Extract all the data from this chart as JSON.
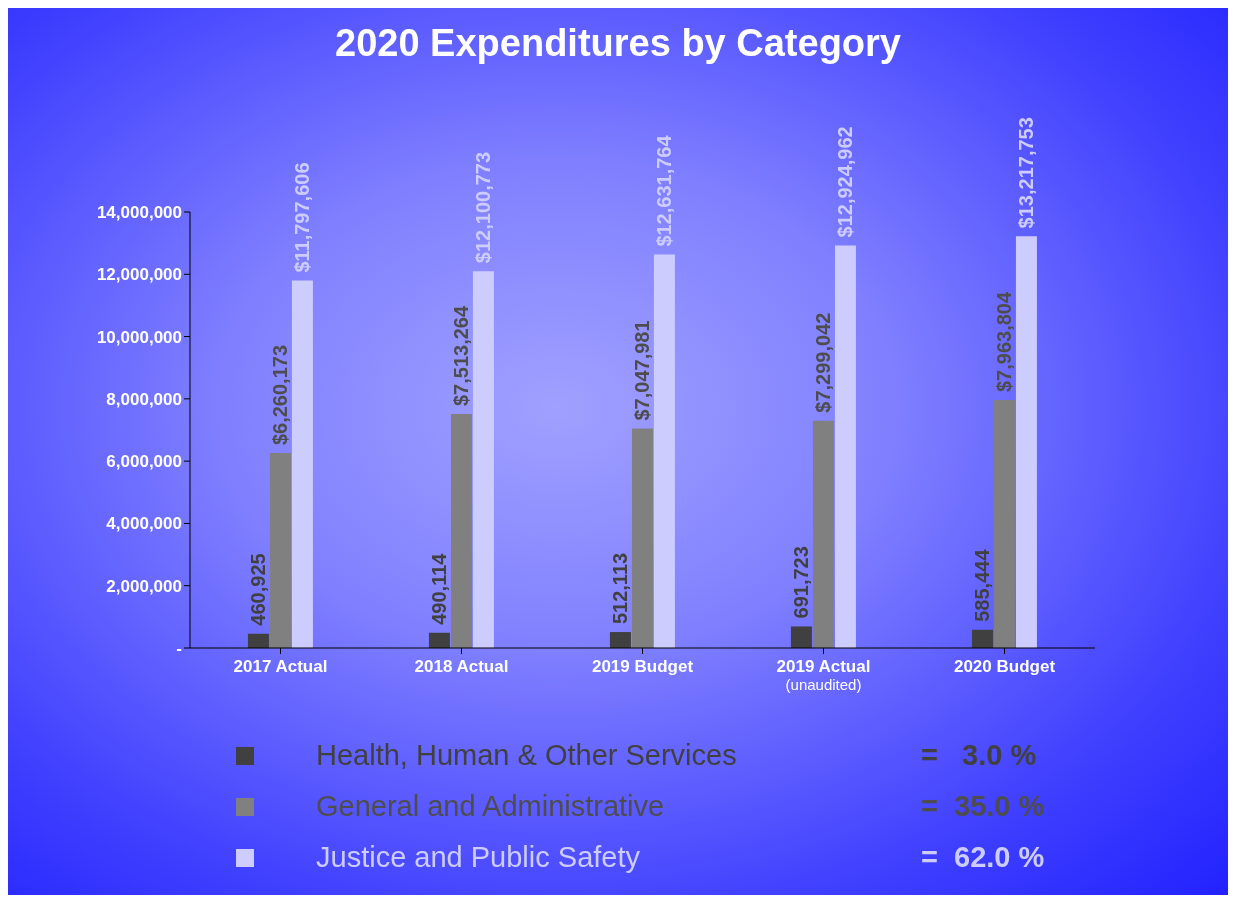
{
  "chart_data": {
    "type": "bar",
    "title": "2020 Expenditures by Category",
    "categories": [
      "2017 Actual",
      "2018 Actual",
      "2019 Budget",
      "2019 Actual\n(unaudited)",
      "2020 Budget"
    ],
    "series": [
      {
        "name": "Health, Human & Other Services",
        "color": "#404040",
        "values": [
          460925,
          490114,
          512113,
          691723,
          585444
        ],
        "value_labels": [
          "460,925",
          "490,114",
          "512,113",
          "691,723",
          "585,444"
        ]
      },
      {
        "name": "General and Administrative",
        "color": "#808080",
        "values": [
          6260173,
          7513264,
          7047981,
          7299042,
          7963804
        ],
        "value_labels": [
          "$6,260,173",
          "$7,513,264",
          "$7,047,981",
          "$7,299,042",
          "$7,963,804"
        ]
      },
      {
        "name": "Justice and Public Safety",
        "color": "#ccccff",
        "values": [
          11797606,
          12100773,
          12631764,
          12924962,
          13217753
        ],
        "value_labels": [
          "$11,797,606",
          "$12,100,773",
          "$12,631,764",
          "$12,924,962",
          "$13,217,753"
        ]
      }
    ],
    "ylim": [
      0,
      14000000
    ],
    "yticks": [
      {
        "value": 0,
        "label": "-"
      },
      {
        "value": 2000000,
        "label": "2,000,000"
      },
      {
        "value": 4000000,
        "label": "4,000,000"
      },
      {
        "value": 6000000,
        "label": "6,000,000"
      },
      {
        "value": 8000000,
        "label": "8,000,000"
      },
      {
        "value": 10000000,
        "label": "10,000,000"
      },
      {
        "value": 12000000,
        "label": "12,000,000"
      },
      {
        "value": 14000000,
        "label": "14,000,000"
      }
    ],
    "grid": false,
    "legend": "bottom",
    "annotations": [
      "=   3.0 %",
      "=  35.0 %",
      "=  62.0 %"
    ]
  }
}
